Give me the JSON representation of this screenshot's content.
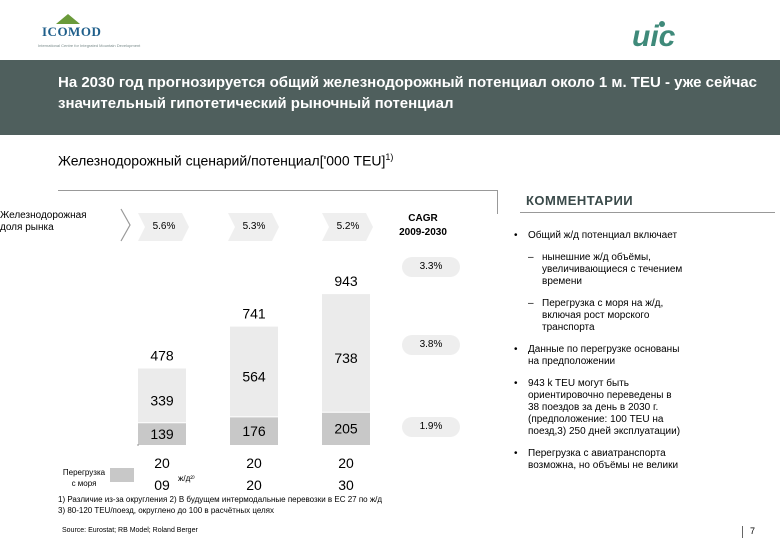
{
  "header": {
    "title": "На 2030 год прогнозируется общий железнодорожный потенциал около 1 м. TEU  - уже сейчас значительный гипотетический рыночный потенциал",
    "logo_left_name": "ICOMOD",
    "logo_left_sub": "International Centre for Integrated Mountain Development",
    "logo_right": "uic"
  },
  "subtitle": {
    "text": "Железнодорожный сценарий/потенциал['000 TEU]",
    "sup": "1)"
  },
  "rail_share": {
    "label_line1": "Железнодорожная",
    "label_line2": "доля рынка",
    "values": [
      "5.6%",
      "5.3%",
      "5.2%"
    ]
  },
  "cagr": {
    "header_line1": "CAGR",
    "header_line2": "2009-2030",
    "values": [
      "3.3%",
      "3.8%",
      "1.9%"
    ]
  },
  "chart_data": {
    "type": "bar",
    "stacked": true,
    "categories": [
      "2009",
      "2020",
      "2030"
    ],
    "category_labels": [
      [
        "20",
        "09"
      ],
      [
        "20",
        "20"
      ],
      [
        "20",
        "30"
      ]
    ],
    "category_note": "ж/д²⁾",
    "series": [
      {
        "name": "Перегрузка с моря",
        "values": [
          139,
          176,
          205
        ],
        "color": "#c8c8c8"
      },
      {
        "name": "",
        "values": [
          339,
          564,
          738
        ],
        "color": "#ebebeb"
      }
    ],
    "totals": [
      478,
      741,
      943
    ],
    "total_labels": [
      "478",
      "741",
      "943"
    ],
    "bottom_labels": [
      "139",
      "176",
      "205"
    ],
    "top_labels": [
      "339",
      "564",
      "738"
    ],
    "ylim": [
      0,
      1000
    ]
  },
  "legend": {
    "label_line1": "Перегрузка",
    "label_line2": "с моря"
  },
  "footnotes": {
    "line1": "1) Различие из-за округления     2) В будущем интермодальные перевозки в ЕС 27 по ж/д",
    "line2": "3) 80-120 TEU/поезд, округлено до 100 в расчётных целях"
  },
  "source": "Source: Eurostat; RB Model; Roland Berger",
  "page_number": "7",
  "comments": {
    "title": "КОММЕНТАРИИ",
    "items": [
      {
        "bullet": "•",
        "lines": [
          "Общий ж/д потенциал включает"
        ]
      },
      {
        "bullet": "–",
        "lines": [
          "нынешние ж/д объёмы,",
          "увеличивающиеся с течением",
          "времени"
        ]
      },
      {
        "bullet": "–",
        "lines": [
          "Перегрузка с моря на ж/д,",
          "включая рост морского",
          "транспорта"
        ]
      },
      {
        "bullet": "•",
        "lines": [
          "Данные по перегрузке основаны",
          "на предположении"
        ]
      },
      {
        "bullet": "•",
        "lines": [
          "943 k TEU могут быть",
          "ориентировочно переведены в",
          "38 поездов за день в 2030 г.",
          "(предположение: 100 TEU на",
          "поезд,3) 250 дней эксплуатации)"
        ]
      },
      {
        "bullet": "•",
        "lines": [
          "Перегрузка с авиатранспорта",
          "возможна, но объёмы не велики"
        ]
      }
    ]
  }
}
